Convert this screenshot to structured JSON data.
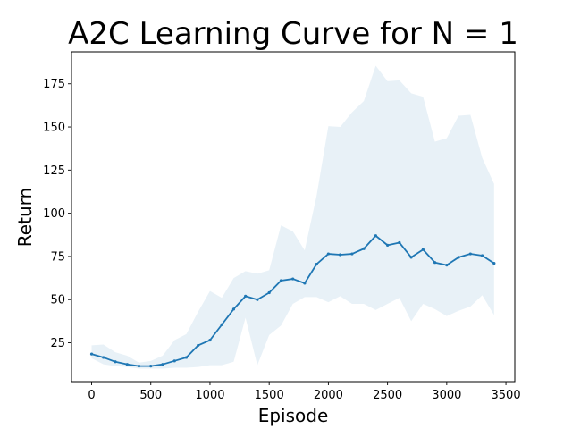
{
  "chart_data": {
    "type": "line",
    "title": "A2C Learning Curve for N = 1",
    "xlabel": "Episode",
    "ylabel": "Return",
    "xlim": [
      -170,
      3575
    ],
    "ylim": [
      2.5,
      193.5
    ],
    "xticks": [
      0,
      500,
      1000,
      1500,
      2000,
      2500,
      3000,
      3500
    ],
    "xtick_labels": [
      "0",
      "500",
      "1000",
      "1500",
      "2000",
      "2500",
      "3000",
      "3500"
    ],
    "yticks": [
      25,
      50,
      75,
      100,
      125,
      150,
      175
    ],
    "ytick_labels": [
      "25",
      "50",
      "75",
      "100",
      "125",
      "150",
      "175"
    ],
    "grid": false,
    "line_color": "#1f77b4",
    "band_color": "#1f77b4",
    "series": [
      {
        "x": [
          0,
          100,
          200,
          300,
          400,
          500,
          600,
          700,
          800,
          900,
          1000,
          1100,
          1200,
          1300,
          1400,
          1500,
          1600,
          1700,
          1800,
          1900,
          2000,
          2100,
          2200,
          2300,
          2400,
          2500,
          2600,
          2700,
          2800,
          2900,
          3000,
          3100,
          3200,
          3300,
          3400
        ],
        "mean": [
          18.5,
          16.5,
          14,
          12.5,
          11.5,
          11.5,
          12.5,
          14.5,
          16.5,
          23.5,
          26.5,
          35.5,
          44.5,
          52,
          50,
          54,
          61,
          62,
          59.5,
          70.5,
          76.5,
          76,
          76.5,
          79.5,
          87,
          81.5,
          83,
          74.5,
          79,
          71.5,
          70,
          74.5,
          76.5,
          75.5,
          71
        ],
        "upper": [
          23.5,
          24,
          19.5,
          17.5,
          13.5,
          14.5,
          17.5,
          26.5,
          30,
          43,
          55,
          51,
          62.5,
          66.5,
          65,
          67,
          93,
          89.5,
          78.5,
          110,
          150.5,
          150,
          158.5,
          165,
          185.5,
          176.5,
          177,
          169.5,
          167.5,
          141.5,
          143.5,
          156.5,
          157,
          132,
          117
        ],
        "lower": [
          16,
          12.5,
          11.5,
          11,
          10,
          10,
          10,
          10.5,
          10.5,
          11,
          12,
          12,
          14,
          39.5,
          12,
          29.5,
          35,
          47.5,
          51.5,
          51.5,
          48.5,
          52,
          47.5,
          47.5,
          44,
          47.5,
          51,
          37.5,
          47.5,
          44.5,
          40.5,
          43.5,
          46,
          52.5,
          41
        ]
      }
    ]
  }
}
